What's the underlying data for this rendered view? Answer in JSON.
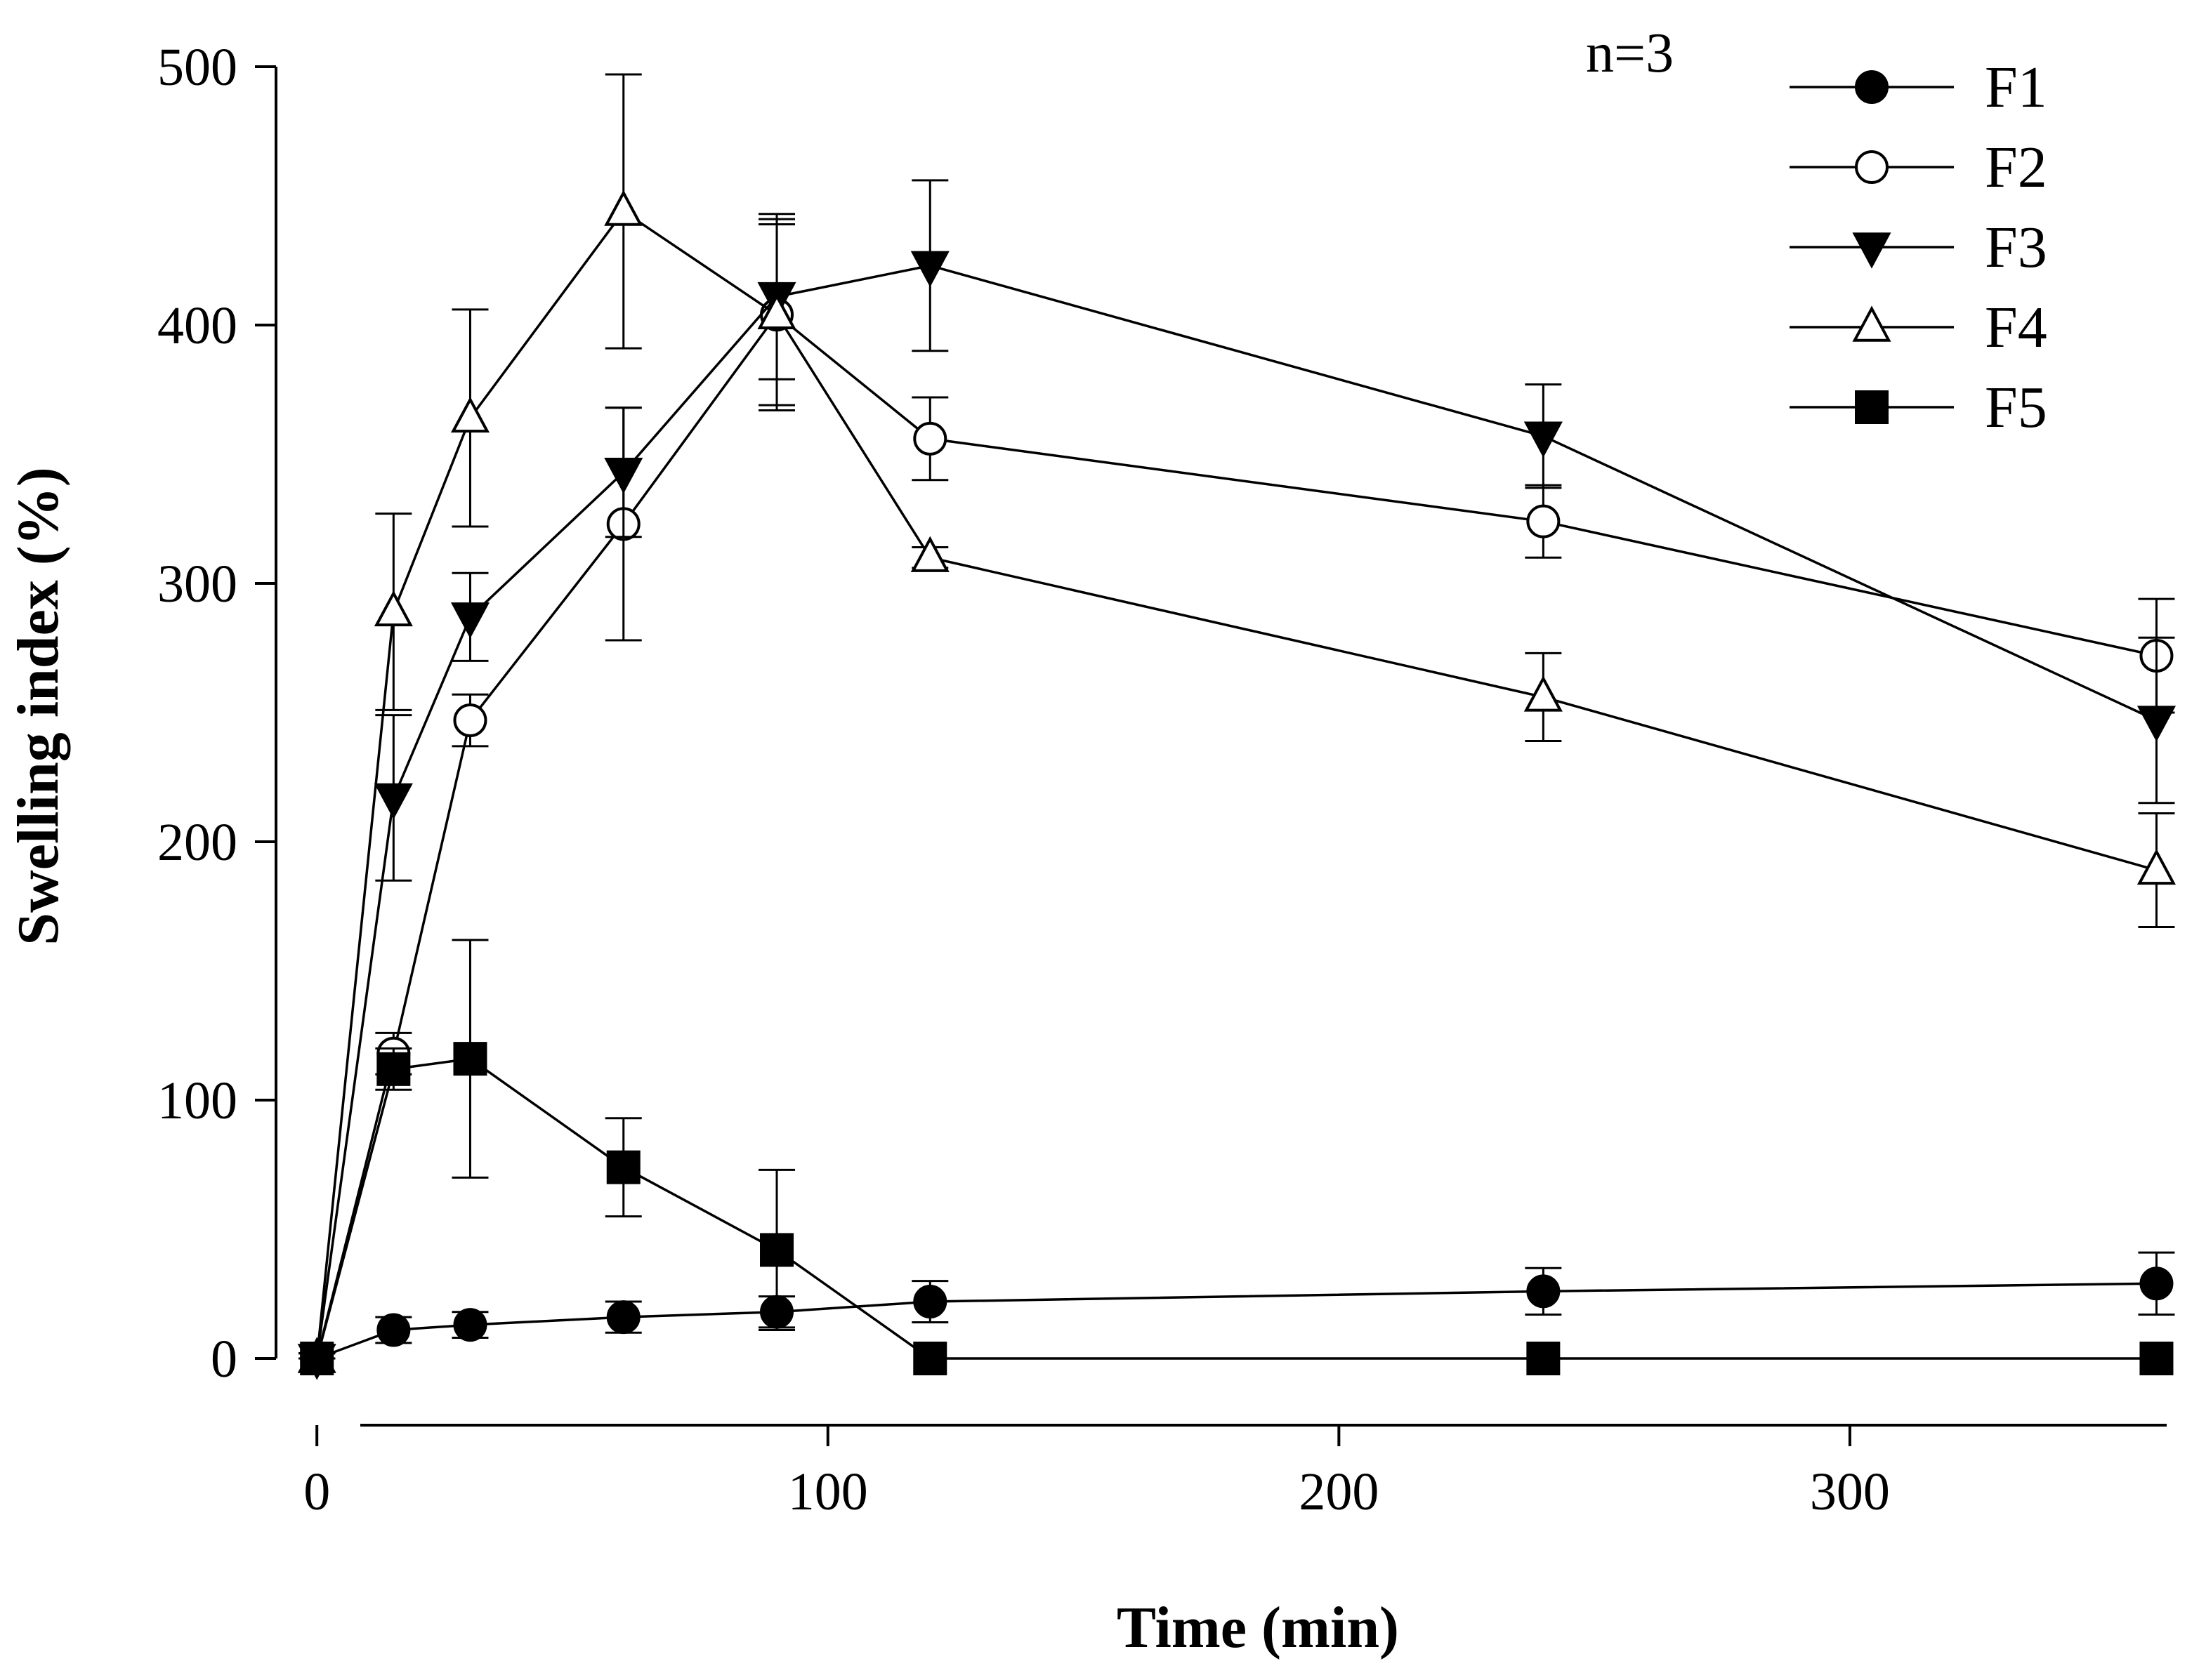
{
  "chart_data": {
    "type": "line",
    "title": "",
    "xlabel": "Time (min)",
    "ylabel": "Swelling index (%)",
    "xlim": [
      -8,
      362
    ],
    "ylim": [
      0,
      500
    ],
    "xticks": [
      0,
      100,
      200,
      300
    ],
    "yticks": [
      0,
      100,
      200,
      300,
      400,
      500
    ],
    "x": [
      0,
      15,
      30,
      60,
      90,
      120,
      240,
      360
    ],
    "annotation": "n=3",
    "legend_position": "top-right",
    "grid": false,
    "series": [
      {
        "name": "F1",
        "marker": "circle-filled",
        "values": [
          0,
          11,
          13,
          16,
          18,
          22,
          26,
          29
        ],
        "errors": [
          2,
          5,
          5,
          6,
          6,
          8,
          9,
          12
        ]
      },
      {
        "name": "F2",
        "marker": "circle-open",
        "values": [
          0,
          118,
          247,
          323,
          404,
          356,
          324,
          272
        ],
        "errors": [
          2,
          8,
          10,
          45,
          35,
          16,
          14,
          22
        ]
      },
      {
        "name": "F3",
        "marker": "triangle-down-filled",
        "values": [
          0,
          217,
          287,
          343,
          411,
          423,
          357,
          247
        ],
        "errors": [
          2,
          32,
          17,
          25,
          32,
          33,
          20,
          32
        ]
      },
      {
        "name": "F4",
        "marker": "triangle-up-open",
        "values": [
          0,
          289,
          364,
          444,
          404,
          310,
          256,
          189
        ],
        "errors": [
          2,
          38,
          42,
          53,
          37,
          4,
          17,
          22
        ]
      },
      {
        "name": "F5",
        "marker": "square-filled",
        "values": [
          0,
          112,
          116,
          74,
          42,
          0,
          0,
          0
        ],
        "errors": [
          2,
          8,
          46,
          19,
          31,
          0,
          0,
          0
        ]
      }
    ]
  }
}
